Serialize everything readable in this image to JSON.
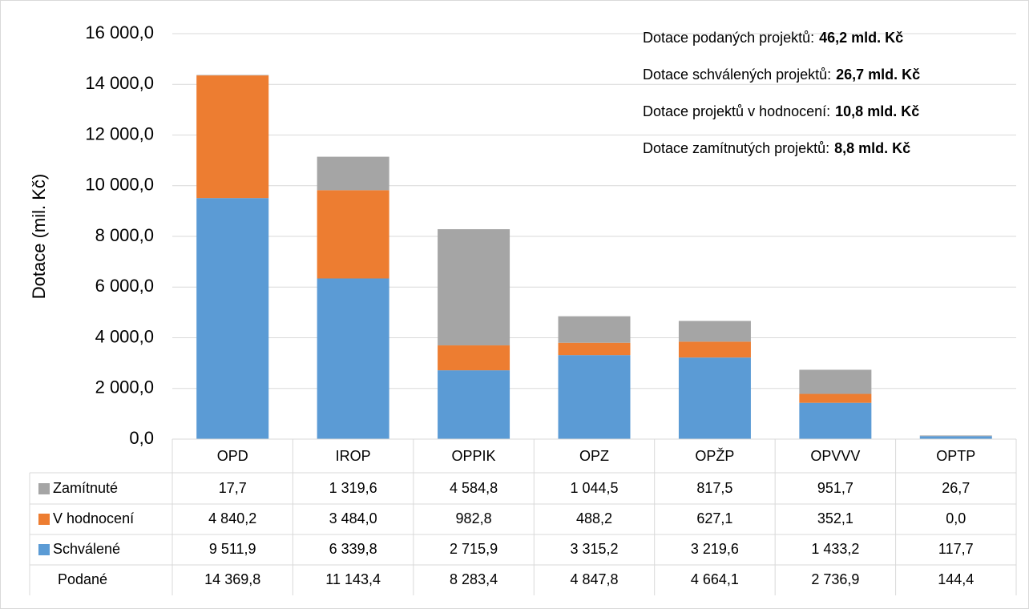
{
  "chart_data": {
    "type": "stacked_bar",
    "y_label": "Dotace (mil. Kč)",
    "categories": [
      "OPD",
      "IROP",
      "OPPIK",
      "OPZ",
      "OPŽP",
      "OPVVV",
      "OPTP"
    ],
    "series": [
      {
        "name": "Schválené",
        "color": "#5b9bd5",
        "values": [
          9511.9,
          6339.8,
          2715.9,
          3315.2,
          3219.6,
          1433.2,
          117.7
        ],
        "value_labels": [
          "9 511,9",
          "6 339,8",
          "2 715,9",
          "3 315,2",
          "3 219,6",
          "1 433,2",
          "117,7"
        ]
      },
      {
        "name": "V hodnocení",
        "color": "#ed7d31",
        "values": [
          4840.2,
          3484.0,
          982.8,
          488.2,
          627.1,
          352.1,
          0.0
        ],
        "value_labels": [
          "4 840,2",
          "3 484,0",
          "982,8",
          "488,2",
          "627,1",
          "352,1",
          "0,0"
        ]
      },
      {
        "name": "Zamítnuté",
        "color": "#a5a5a5",
        "values": [
          17.7,
          1319.6,
          4584.8,
          1044.5,
          817.5,
          951.7,
          26.7
        ],
        "value_labels": [
          "17,7",
          "1 319,6",
          "4 584,8",
          "1 044,5",
          "817,5",
          "951,7",
          "26,7"
        ]
      }
    ],
    "totals": {
      "name": "Podané",
      "values": [
        14369.8,
        11143.4,
        8283.4,
        4847.8,
        4664.1,
        2736.9,
        144.4
      ],
      "value_labels": [
        "14 369,8",
        "11 143,4",
        "8 283,4",
        "4 847,8",
        "4 664,1",
        "2 736,9",
        "144,4"
      ]
    },
    "ylim": [
      0,
      16000
    ],
    "yticks": [
      {
        "value": 0,
        "label": "0,0"
      },
      {
        "value": 2000,
        "label": "2 000,0"
      },
      {
        "value": 4000,
        "label": "4 000,0"
      },
      {
        "value": 6000,
        "label": "6 000,0"
      },
      {
        "value": 8000,
        "label": "8 000,0"
      },
      {
        "value": 10000,
        "label": "10 000,0"
      },
      {
        "value": 12000,
        "label": "12 000,0"
      },
      {
        "value": 14000,
        "label": "14 000,0"
      },
      {
        "value": 16000,
        "label": "16 000,0"
      }
    ],
    "grid": true,
    "annotations": [
      {
        "text": "Dotace podaných projektů:",
        "value": "46,2 mld. Kč"
      },
      {
        "text": "Dotace schválených projektů:",
        "value": "26,7 mld. Kč"
      },
      {
        "text": "Dotace projektů v hodnocení:",
        "value": "10,8 mld. Kč"
      },
      {
        "text": "Dotace zamítnutých projektů:",
        "value": "8,8 mld. Kč"
      }
    ]
  }
}
